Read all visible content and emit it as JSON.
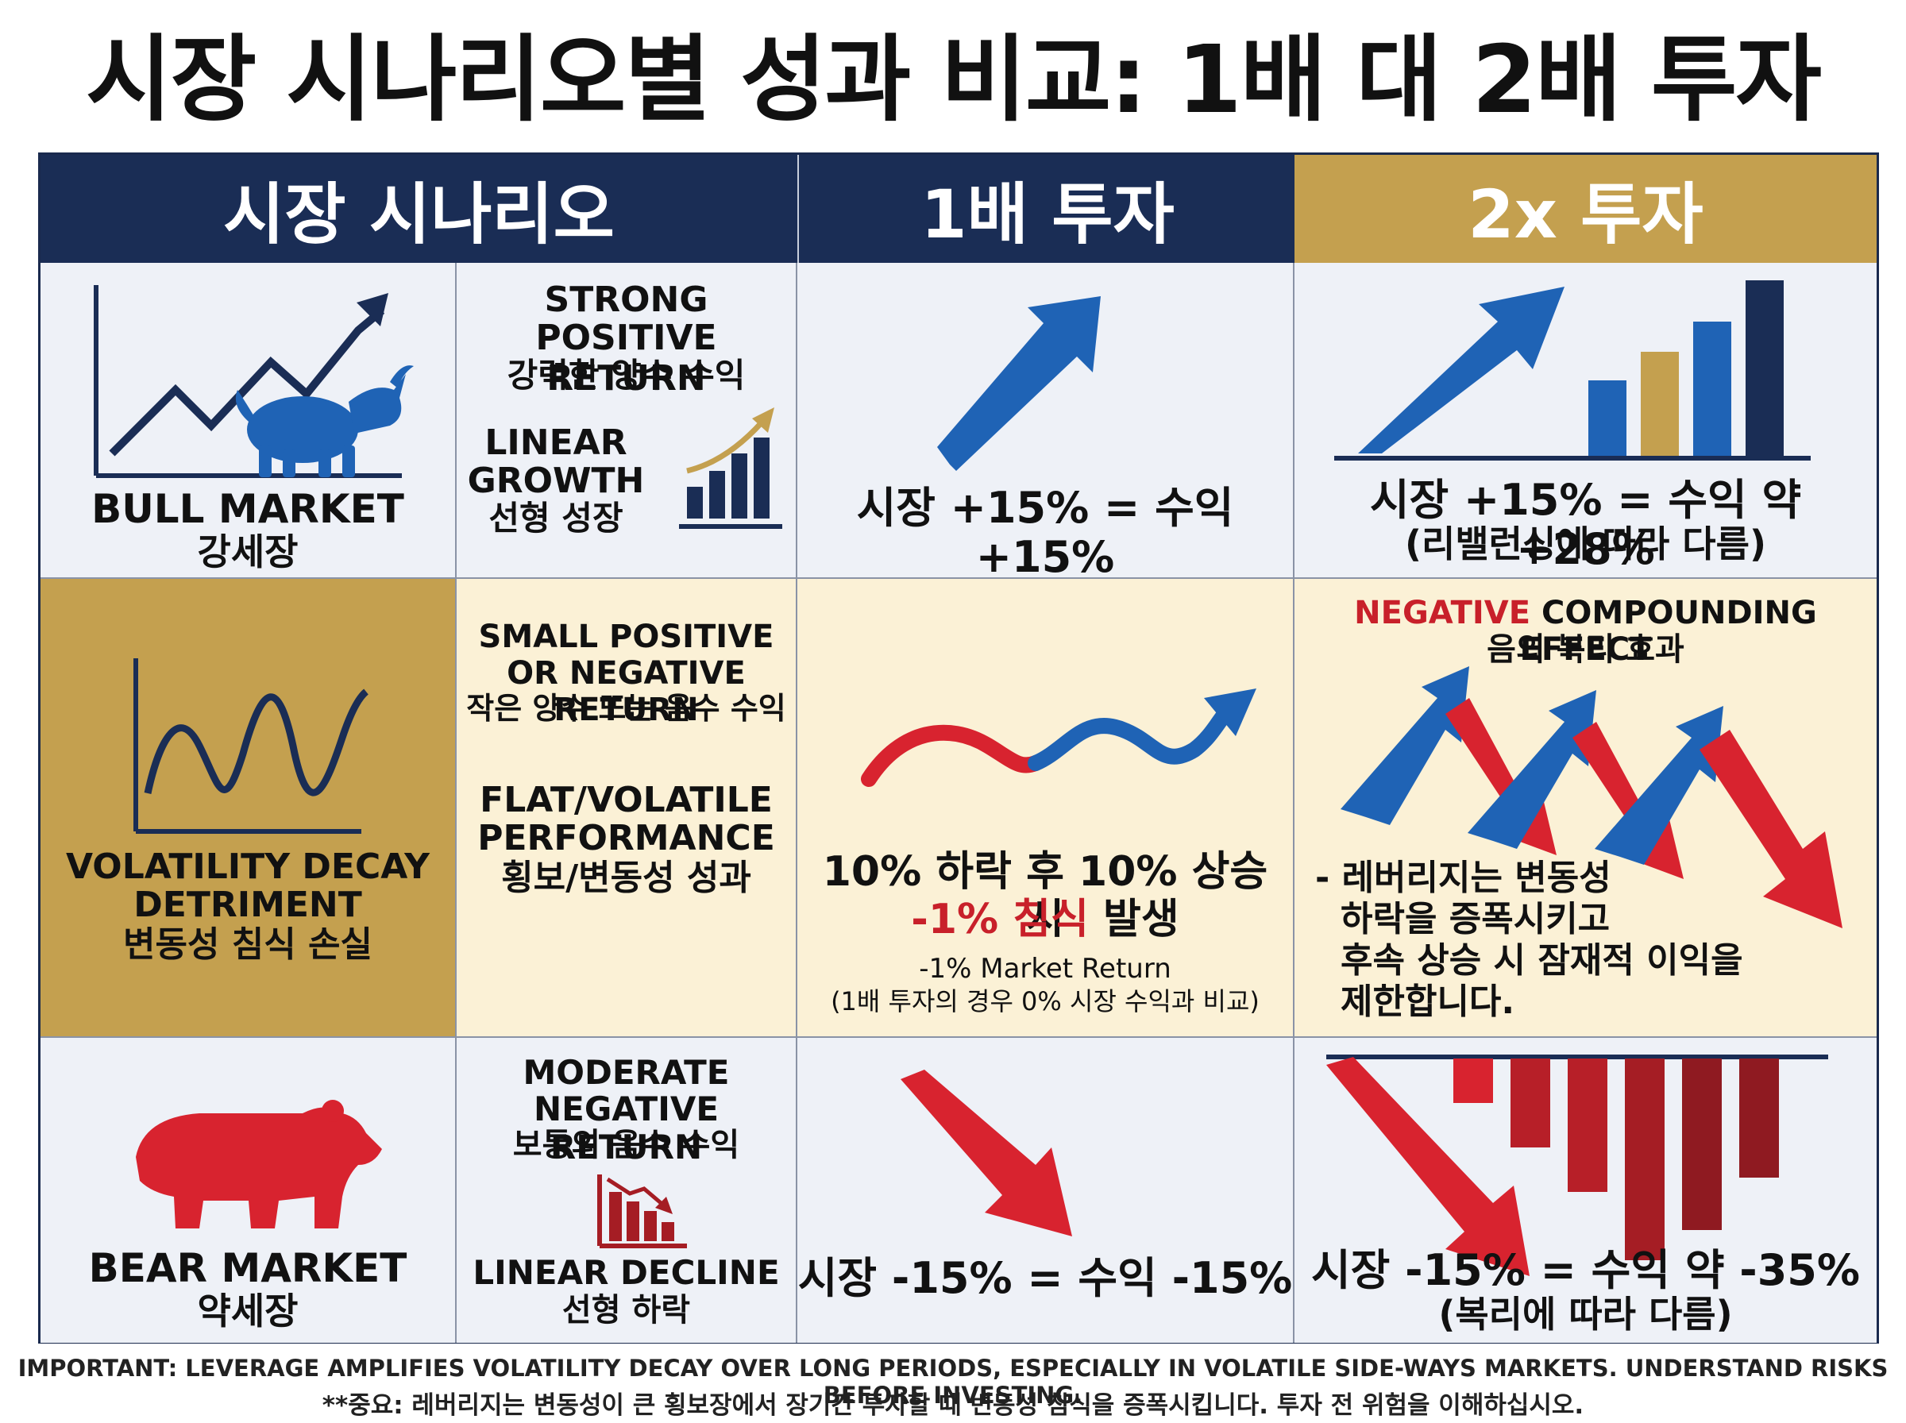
{
  "title": "시장 시나리오별 성과 비교: 1배 대 2배 투자",
  "headers": {
    "scenario": "시장 시나리오",
    "one_x": "1배 투자",
    "two_x": "2x 투자"
  },
  "rows": {
    "bull": {
      "name_en": "BULL MARKET",
      "name_ko": "강세장",
      "desc_1": "STRONG",
      "desc_2": "POSITIVE RETURN",
      "desc_ko": "강력한 양수 수익",
      "growth_1": "LINEAR",
      "growth_2": "GROWTH",
      "growth_ko": "선형 성장",
      "one_x": "시장 +15% = 수익 +15%",
      "two_x": "시장 +15% = 수익 약 +28%",
      "two_x_note": "(리밸런싱에 따라 다름)"
    },
    "volatility": {
      "name_1": "VOLATILITY DECAY",
      "name_2": "DETRIMENT",
      "name_ko": "변동성 침식 손실",
      "desc_1": "SMALL POSITIVE",
      "desc_2": "OR NEGATIVE RETURN",
      "desc_ko": "작은 양수 또는 음수 수익",
      "perf_1": "FLAT/VOLATILE",
      "perf_2": "PERFORMANCE",
      "perf_ko": "횡보/변동성 성과",
      "one_x_line1": "10% 하락 후 10% 상승 시",
      "one_x_red": "-1% 침식",
      "one_x_after": " 발생",
      "one_x_sub": "-1% Market Return",
      "one_x_sub2": "(1배 투자의 경우 0% 시장 수익과 비교)",
      "two_x_head_red": "NEGATIVE",
      "two_x_head_rest": " COMPOUNDING EFFECT",
      "two_x_head_ko": "음의 복리 효과",
      "bullet_1": "- 레버리지는 변동성",
      "bullet_2": "하락을 증폭시키고",
      "bullet_3": "후속 상승 시 잠재적 이익을",
      "bullet_4": "제한합니다."
    },
    "bear": {
      "name_en": "BEAR MARKET",
      "name_ko": "약세장",
      "desc_1": "MODERATE",
      "desc_2": "NEGATIVE RETURN",
      "desc_ko": "보통의 음수 수익",
      "decline": "LINEAR DECLINE",
      "decline_ko": "선형 하락",
      "one_x": "시장 -15% = 수익 -15%",
      "two_x": "시장 -15% = 수익 약 -35%",
      "two_x_note": "(복리에 따라 다름)"
    }
  },
  "footer": {
    "en": "IMPORTANT: LEVERAGE AMPLIFIES VOLATILITY DECAY OVER LONG PERIODS, ESPECIALLY IN VOLATILE SIDE-WAYS MARKETS. UNDERSTAND RISKS BEFORE INVESTING.",
    "ko": "**중요: 레버리지는 변동성이 큰 횡보장에서 장기간 투자할 때 변동성 침식을 증폭시킵니다. 투자 전 위험을 이해하십시오."
  },
  "colors": {
    "navy": "#1a2d55",
    "gold": "#c4a04f",
    "blue": "#1f63b5",
    "red": "#d8232f",
    "dark_red": "#a51d24"
  },
  "icons": [
    "bull-icon",
    "bear-icon",
    "zigzag-up-arrow-icon",
    "wave-line-icon",
    "bar-chart-up-icon",
    "bar-chart-down-icon",
    "up-arrow-icon",
    "down-arrow-icon",
    "wave-arrow-icon",
    "zigzag-arrows-icon"
  ]
}
